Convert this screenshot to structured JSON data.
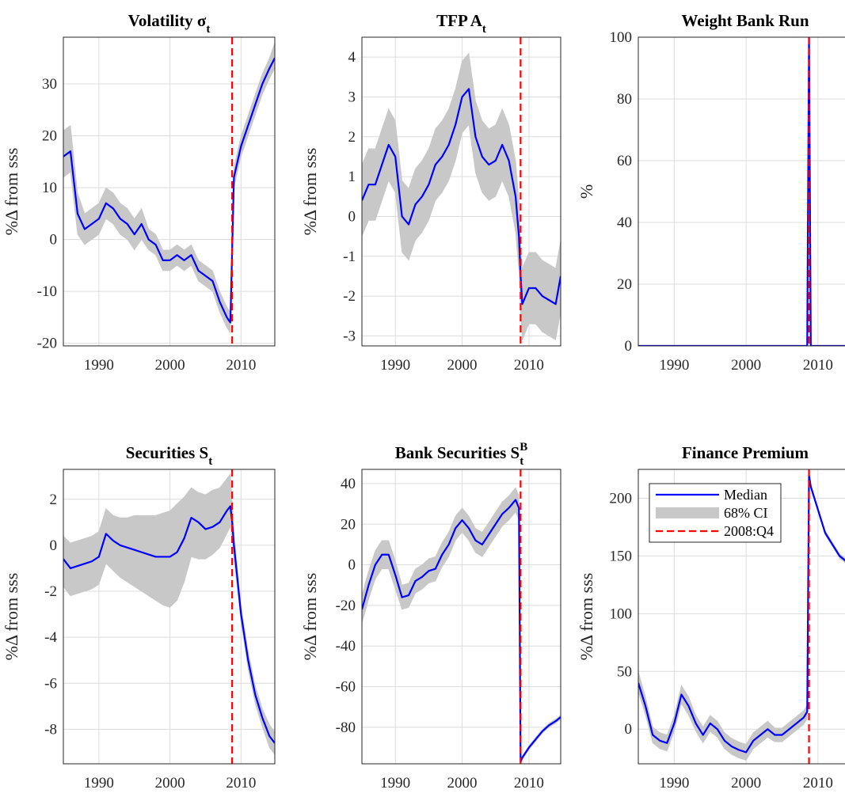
{
  "chart_data": [
    {
      "type": "line",
      "title": "Volatility σ",
      "title_sub": "t",
      "ylabel": "%Δ from sss",
      "x": [
        1985,
        1986,
        1987,
        1988,
        1989,
        1990,
        1991,
        1992,
        1993,
        1994,
        1995,
        1996,
        1997,
        1998,
        1999,
        2000,
        2001,
        2002,
        2003,
        2004,
        2005,
        2006,
        2007,
        2008,
        2008.5,
        2008.75,
        2009,
        2010,
        2011,
        2012,
        2013,
        2014,
        2014.75
      ],
      "xlim": [
        1985,
        2014.75
      ],
      "xticks": [
        1990,
        2000,
        2010
      ],
      "ylim": [
        -20.5,
        39
      ],
      "yticks": [
        -20,
        -10,
        0,
        10,
        20,
        30
      ],
      "grid": true,
      "series": [
        {
          "color": "#0000ff",
          "values": [
            16,
            17,
            5,
            2,
            3,
            4,
            7,
            6,
            4,
            3,
            1,
            3,
            0,
            -1,
            -4,
            -4,
            -3,
            -4,
            -3,
            -6,
            -7,
            -8,
            -12,
            -15,
            -16,
            -2,
            12,
            18,
            22,
            26,
            30,
            33,
            35
          ]
        }
      ],
      "band": {
        "color": "#c8c8c8",
        "lower": [
          12,
          13,
          1,
          -1,
          0,
          1,
          4,
          3,
          1,
          0,
          -2,
          0,
          -2,
          -3,
          -6,
          -6,
          -5,
          -6,
          -5,
          -8,
          -9,
          -10,
          -14,
          -17,
          -18,
          -4,
          10,
          16,
          20,
          24,
          28,
          31,
          33
        ],
        "upper": [
          21,
          22,
          9,
          5,
          6,
          7,
          10,
          9,
          7,
          6,
          4,
          6,
          2,
          1,
          -2,
          -2,
          -1,
          -2,
          -1,
          -4,
          -5,
          -6,
          -10,
          -13,
          -14,
          0,
          14,
          20,
          24,
          28,
          32,
          35,
          38
        ]
      },
      "vline": {
        "value": 2008.75,
        "color": "#ff0000"
      }
    },
    {
      "type": "line",
      "title": "TFP A",
      "title_sub": "t",
      "ylabel": "%Δ from sss",
      "x": [
        1985,
        1986,
        1987,
        1988,
        1989,
        1990,
        1991,
        1992,
        1993,
        1994,
        1995,
        1996,
        1997,
        1998,
        1999,
        2000,
        2001,
        2002,
        2003,
        2004,
        2005,
        2006,
        2007,
        2008,
        2008.5,
        2008.75,
        2009,
        2010,
        2011,
        2012,
        2013,
        2014,
        2014.75
      ],
      "xlim": [
        1985,
        2014.75
      ],
      "xticks": [
        1990,
        2000,
        2010
      ],
      "ylim": [
        -3.25,
        4.5
      ],
      "yticks": [
        -3,
        -2,
        -1,
        0,
        1,
        2,
        3,
        4
      ],
      "grid": true,
      "series": [
        {
          "color": "#0000ff",
          "values": [
            0.4,
            0.8,
            0.8,
            1.3,
            1.8,
            1.5,
            0,
            -0.2,
            0.3,
            0.5,
            0.8,
            1.3,
            1.5,
            1.8,
            2.3,
            3.0,
            3.2,
            2.0,
            1.5,
            1.3,
            1.4,
            1.8,
            1.4,
            0.5,
            -0.5,
            -1.5,
            -2.2,
            -1.8,
            -1.8,
            -2.0,
            -2.1,
            -2.2,
            -1.5
          ]
        }
      ],
      "band": {
        "color": "#c8c8c8",
        "lower": [
          -0.5,
          -0.1,
          -0.1,
          0.4,
          0.9,
          0.6,
          -0.9,
          -1.1,
          -0.6,
          -0.4,
          -0.1,
          0.4,
          0.6,
          0.9,
          1.4,
          2.1,
          2.3,
          1.1,
          0.6,
          0.4,
          0.5,
          0.9,
          0.5,
          -0.4,
          -1.4,
          -2.4,
          -3.1,
          -2.7,
          -2.7,
          -2.9,
          -3.0,
          -3.1,
          -2.4
        ],
        "upper": [
          1.3,
          1.7,
          1.7,
          2.2,
          2.7,
          2.4,
          0.9,
          0.7,
          1.2,
          1.4,
          1.7,
          2.2,
          2.4,
          2.7,
          3.2,
          3.9,
          4.1,
          2.9,
          2.4,
          2.2,
          2.3,
          2.7,
          2.3,
          1.4,
          0.4,
          -0.6,
          -1.3,
          -0.9,
          -0.9,
          -1.1,
          -1.2,
          -1.3,
          -0.6
        ]
      },
      "vline": {
        "value": 2008.75,
        "color": "#ff0000"
      }
    },
    {
      "type": "line",
      "title": "Weight Bank Run",
      "ylabel": "%",
      "x": [
        1985,
        1986,
        1987,
        1988,
        1989,
        1990,
        1991,
        1992,
        1993,
        1994,
        1995,
        1996,
        1997,
        1998,
        1999,
        2000,
        2001,
        2002,
        2003,
        2004,
        2005,
        2006,
        2007,
        2008,
        2008.5,
        2008.75,
        2009,
        2010,
        2011,
        2012,
        2013,
        2014,
        2014.75
      ],
      "xlim": [
        1985,
        2014.75
      ],
      "xticks": [
        1990,
        2000,
        2010
      ],
      "ylim": [
        0,
        100
      ],
      "yticks": [
        0,
        20,
        40,
        60,
        80,
        100
      ],
      "grid": true,
      "series": [
        {
          "color": "#0000ff",
          "values": [
            0,
            0,
            0,
            0,
            0,
            0,
            0,
            0,
            0,
            0,
            0,
            0,
            0,
            0,
            0,
            0,
            0,
            0,
            0,
            0,
            0,
            0,
            0,
            0,
            0,
            100,
            0,
            0,
            0,
            0,
            0,
            0,
            0
          ]
        }
      ],
      "vline": {
        "value": 2008.75,
        "color": "#ff0000"
      }
    },
    {
      "type": "line",
      "title": "Securities S",
      "title_sub": "t",
      "ylabel": "%Δ from sss",
      "x": [
        1985,
        1986,
        1987,
        1988,
        1989,
        1990,
        1991,
        1992,
        1993,
        1994,
        1995,
        1996,
        1997,
        1998,
        1999,
        2000,
        2001,
        2002,
        2003,
        2004,
        2005,
        2006,
        2007,
        2008,
        2008.5,
        2008.75,
        2009,
        2010,
        2011,
        2012,
        2013,
        2014,
        2014.75
      ],
      "xlim": [
        1985,
        2014.75
      ],
      "xticks": [
        1990,
        2000,
        2010
      ],
      "ylim": [
        -9.5,
        3.3
      ],
      "yticks": [
        -8,
        -6,
        -4,
        -2,
        0,
        2
      ],
      "grid": true,
      "series": [
        {
          "color": "#0000ff",
          "values": [
            -0.6,
            -1.0,
            -0.9,
            -0.8,
            -0.7,
            -0.5,
            0.5,
            0.2,
            0,
            -0.1,
            -0.2,
            -0.3,
            -0.4,
            -0.5,
            -0.5,
            -0.5,
            -0.3,
            0.3,
            1.2,
            1.0,
            0.7,
            0.8,
            1.0,
            1.5,
            1.7,
            1.0,
            0.0,
            -3.0,
            -5.0,
            -6.5,
            -7.5,
            -8.3,
            -8.6
          ]
        }
      ],
      "band": {
        "color": "#c8c8c8",
        "lower": [
          -1.8,
          -2.2,
          -2.1,
          -2.0,
          -1.9,
          -1.7,
          -0.8,
          -1.1,
          -1.4,
          -1.6,
          -1.8,
          -2.0,
          -2.2,
          -2.4,
          -2.6,
          -2.7,
          -2.4,
          -1.6,
          -0.5,
          -0.6,
          -0.6,
          -0.4,
          -0.1,
          0.5,
          0.8,
          0.3,
          -0.6,
          -3.4,
          -5.4,
          -6.9,
          -7.9,
          -8.8,
          -9.1
        ],
        "upper": [
          0.4,
          0.1,
          0.2,
          0.3,
          0.4,
          0.6,
          1.6,
          1.3,
          1.2,
          1.2,
          1.3,
          1.3,
          1.3,
          1.3,
          1.4,
          1.5,
          1.8,
          2.1,
          2.5,
          2.3,
          2.2,
          2.4,
          2.5,
          2.9,
          3.1,
          2.0,
          0.6,
          -2.6,
          -4.6,
          -6.1,
          -7.1,
          -7.8,
          -8.1
        ]
      },
      "vline": {
        "value": 2008.75,
        "color": "#ff0000"
      }
    },
    {
      "type": "line",
      "title": "Bank Securities S",
      "title_sub": "t",
      "title_sup": "B",
      "ylabel": "%Δ from sss",
      "x": [
        1985,
        1986,
        1987,
        1988,
        1989,
        1990,
        1991,
        1992,
        1993,
        1994,
        1995,
        1996,
        1997,
        1998,
        1999,
        2000,
        2001,
        2002,
        2003,
        2004,
        2005,
        2006,
        2007,
        2008,
        2008.5,
        2008.75,
        2009,
        2010,
        2011,
        2012,
        2013,
        2014,
        2014.75
      ],
      "xlim": [
        1985,
        2014.75
      ],
      "xticks": [
        1990,
        2000,
        2010
      ],
      "ylim": [
        -98,
        47
      ],
      "yticks": [
        -80,
        -60,
        -40,
        -20,
        0,
        20,
        40
      ],
      "grid": true,
      "series": [
        {
          "color": "#0000ff",
          "values": [
            -22,
            -10,
            0,
            5,
            5,
            -5,
            -16,
            -15,
            -8,
            -6,
            -3,
            -2,
            5,
            10,
            18,
            22,
            18,
            12,
            10,
            15,
            20,
            25,
            28,
            32,
            28,
            -97,
            -95,
            -90,
            -86,
            -82,
            -79,
            -77,
            -75
          ]
        }
      ],
      "band": {
        "color": "#c8c8c8",
        "lower": [
          -29,
          -17,
          -7,
          -2,
          -2,
          -12,
          -22,
          -21,
          -14,
          -12,
          -9,
          -8,
          -1,
          4,
          12,
          16,
          12,
          6,
          4,
          9,
          14,
          19,
          22,
          26,
          22,
          -98,
          -96,
          -91,
          -87,
          -83,
          -80,
          -78,
          -76
        ],
        "upper": [
          -15,
          -3,
          7,
          12,
          12,
          2,
          -10,
          -9,
          -2,
          0,
          3,
          4,
          11,
          16,
          24,
          28,
          24,
          18,
          16,
          21,
          26,
          31,
          34,
          38,
          34,
          -96,
          -94,
          -89,
          -85,
          -81,
          -78,
          -76,
          -74
        ]
      },
      "vline": {
        "value": 2008.75,
        "color": "#ff0000"
      }
    },
    {
      "type": "line",
      "title": "Finance Premium",
      "ylabel": "%Δ from sss",
      "x": [
        1985,
        1986,
        1987,
        1988,
        1989,
        1990,
        1991,
        1992,
        1993,
        1994,
        1995,
        1996,
        1997,
        1998,
        1999,
        2000,
        2001,
        2002,
        2003,
        2004,
        2005,
        2006,
        2007,
        2008,
        2008.5,
        2008.75,
        2009,
        2010,
        2011,
        2012,
        2013,
        2014,
        2014.75
      ],
      "xlim": [
        1985,
        2014.75
      ],
      "xticks": [
        1990,
        2000,
        2010
      ],
      "ylim": [
        -30,
        225
      ],
      "yticks": [
        0,
        50,
        100,
        150,
        200
      ],
      "grid": true,
      "series": [
        {
          "name": "Median",
          "color": "#0000ff",
          "values": [
            40,
            20,
            -5,
            -10,
            -12,
            5,
            30,
            20,
            5,
            -5,
            5,
            0,
            -10,
            -15,
            -18,
            -20,
            -10,
            -5,
            0,
            -5,
            -5,
            0,
            5,
            10,
            15,
            220,
            210,
            190,
            170,
            160,
            150,
            145,
            140
          ]
        }
      ],
      "band": {
        "name": "68% CI",
        "color": "#c8c8c8",
        "lower": [
          32,
          12,
          -12,
          -17,
          -19,
          -2,
          22,
          12,
          -2,
          -12,
          -2,
          -7,
          -17,
          -22,
          -25,
          -27,
          -17,
          -12,
          -7,
          -11,
          -11,
          -6,
          -1,
          4,
          9,
          218,
          208,
          188,
          168,
          158,
          148,
          143,
          138
        ],
        "upper": [
          50,
          28,
          2,
          -3,
          -5,
          12,
          38,
          28,
          12,
          2,
          12,
          7,
          -3,
          -8,
          -11,
          -13,
          -3,
          2,
          7,
          1,
          1,
          6,
          11,
          16,
          21,
          222,
          212,
          192,
          172,
          162,
          152,
          147,
          142
        ]
      },
      "vline": {
        "value": 2008.75,
        "label": "2008:Q4",
        "color": "#ff0000"
      },
      "legend": "upper left"
    }
  ]
}
